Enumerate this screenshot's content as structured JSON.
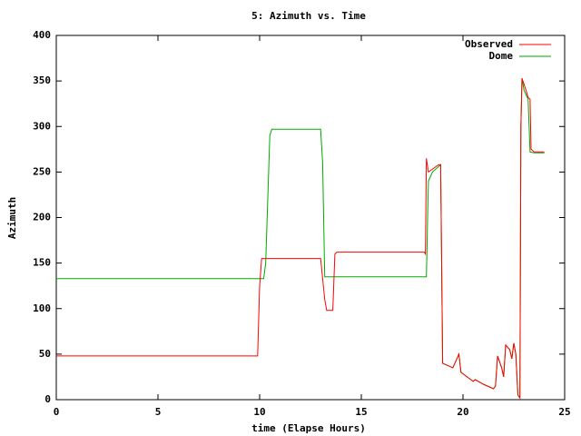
{
  "chart_data": {
    "type": "line",
    "title": "5: Azimuth vs. Time",
    "x_label": "time (Elapse Hours)",
    "y_label": "Azimuth",
    "xlim": [
      0,
      25
    ],
    "xticks": [
      0,
      5,
      10,
      15,
      20,
      25
    ],
    "ylim": [
      0,
      400
    ],
    "yticks": [
      0,
      50,
      100,
      150,
      200,
      250,
      300,
      350,
      400
    ],
    "legend": "upper right",
    "series": [
      {
        "name": "Observed",
        "color": "#ff0000",
        "x": [
          0,
          9.9,
          10.0,
          10.1,
          13.0,
          13.2,
          13.3,
          13.6,
          13.7,
          13.8,
          18.1,
          18.15,
          18.2,
          18.3,
          18.8,
          18.9,
          19.0,
          19.5,
          19.7,
          19.8,
          19.9,
          20.5,
          20.6,
          21.0,
          21.5,
          21.6,
          21.7,
          21.9,
          22.0,
          22.1,
          22.3,
          22.4,
          22.5,
          22.6,
          22.7,
          22.8,
          22.85,
          22.9,
          23.1,
          23.2,
          23.3,
          23.35,
          23.5,
          24.0
        ],
        "values": [
          48,
          48,
          125,
          155,
          155,
          110,
          98,
          98,
          160,
          162,
          162,
          160,
          265,
          250,
          258,
          258,
          40,
          35,
          45,
          50,
          30,
          20,
          22,
          17,
          12,
          15,
          48,
          35,
          25,
          60,
          55,
          45,
          62,
          50,
          5,
          2,
          300,
          353,
          340,
          332,
          330,
          275,
          272,
          272
        ]
      },
      {
        "name": "Dome",
        "color": "#00aa00",
        "x": [
          0,
          10.2,
          10.3,
          10.5,
          10.6,
          13.0,
          13.1,
          13.2,
          18.2,
          18.3,
          18.5,
          18.8,
          18.9,
          19.0,
          19.5,
          19.7,
          19.8,
          19.9,
          20.5,
          20.6,
          21.0,
          21.5,
          21.6,
          21.7,
          21.9,
          22.0,
          22.1,
          22.3,
          22.4,
          22.5,
          22.6,
          22.7,
          22.8,
          22.85,
          22.9,
          23.0,
          23.2,
          23.3,
          23.5,
          24.0
        ],
        "values": [
          133,
          133,
          150,
          290,
          297,
          297,
          260,
          135,
          135,
          240,
          250,
          256,
          258,
          40,
          35,
          45,
          50,
          30,
          20,
          22,
          17,
          12,
          15,
          48,
          35,
          25,
          60,
          55,
          45,
          62,
          50,
          5,
          2,
          300,
          353,
          340,
          330,
          272,
          271,
          271
        ]
      }
    ]
  }
}
